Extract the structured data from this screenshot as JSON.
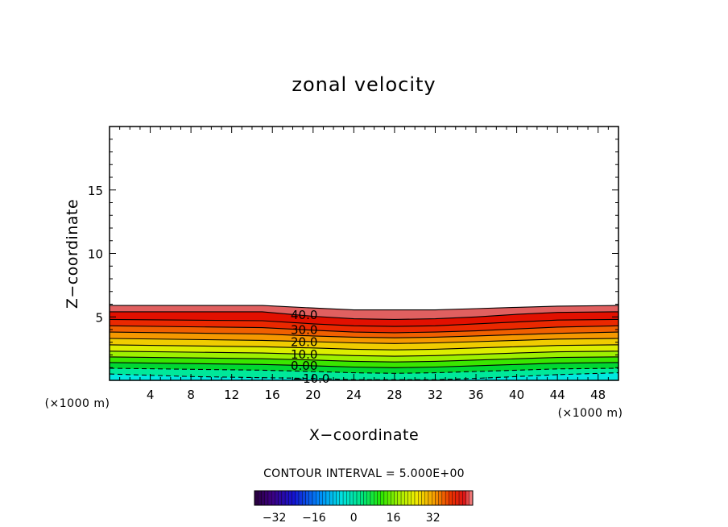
{
  "chart_data": {
    "type": "filled-contour",
    "title": "zonal velocity",
    "xlabel": "X−coordinate",
    "ylabel": "Z−coordinate",
    "x_unit_label": "(×1000 m)",
    "y_unit_label": "(×1000 m)",
    "xlim": [
      0,
      50
    ],
    "ylim": [
      0,
      20
    ],
    "x_ticks": [
      4,
      8,
      12,
      16,
      20,
      24,
      28,
      32,
      36,
      40,
      44,
      48
    ],
    "x_tick_labels": [
      "4",
      "8",
      "12",
      "16",
      "20",
      "24",
      "28",
      "32",
      "36",
      "40",
      "44",
      "48"
    ],
    "y_ticks": [
      5,
      10,
      15
    ],
    "y_tick_labels": [
      "5",
      "10",
      "15"
    ],
    "contour_interval_text": "CONTOUR INTERVAL = 5.000E+00",
    "contour_interval": 5,
    "top_of_field_height": 6.0,
    "contour_labels": [
      {
        "text": "40.0",
        "value": 40,
        "x": 17.8
      },
      {
        "text": "30.0",
        "value": 30,
        "x": 17.8
      },
      {
        "text": "20.0",
        "value": 20,
        "x": 17.8
      },
      {
        "text": "10.0",
        "value": 10,
        "x": 17.8
      },
      {
        "text": "0.00",
        "value": 0,
        "x": 17.8
      },
      {
        "text": "−10.0",
        "value": -10,
        "x": 18.0
      }
    ],
    "contour_profiles": [
      {
        "value": 45,
        "x": [
          0,
          15,
          20,
          24,
          28,
          32,
          36,
          40,
          44,
          50
        ],
        "z": [
          5.9,
          5.9,
          5.7,
          5.55,
          5.55,
          5.55,
          5.65,
          5.75,
          5.85,
          5.9
        ]
      },
      {
        "value": 40,
        "x": [
          0,
          15,
          20,
          24,
          28,
          32,
          36,
          40,
          44,
          50
        ],
        "z": [
          5.4,
          5.4,
          5.05,
          4.85,
          4.8,
          4.85,
          5.0,
          5.2,
          5.35,
          5.4
        ]
      },
      {
        "value": 35,
        "x": [
          0,
          15,
          20,
          24,
          28,
          32,
          36,
          40,
          44,
          50
        ],
        "z": [
          4.8,
          4.7,
          4.45,
          4.3,
          4.25,
          4.3,
          4.45,
          4.6,
          4.75,
          4.8
        ]
      },
      {
        "value": 30,
        "x": [
          0,
          15,
          20,
          24,
          28,
          32,
          36,
          40,
          44,
          50
        ],
        "z": [
          4.3,
          4.15,
          3.95,
          3.8,
          3.75,
          3.8,
          3.9,
          4.05,
          4.2,
          4.3
        ]
      },
      {
        "value": 25,
        "x": [
          0,
          15,
          20,
          24,
          28,
          32,
          36,
          40,
          44,
          50
        ],
        "z": [
          3.8,
          3.65,
          3.5,
          3.4,
          3.35,
          3.4,
          3.5,
          3.6,
          3.7,
          3.8
        ]
      },
      {
        "value": 20,
        "x": [
          0,
          15,
          20,
          24,
          28,
          32,
          36,
          40,
          44,
          50
        ],
        "z": [
          3.3,
          3.15,
          3.05,
          2.95,
          2.9,
          2.95,
          3.05,
          3.15,
          3.25,
          3.3
        ]
      },
      {
        "value": 15,
        "x": [
          0,
          15,
          20,
          24,
          28,
          32,
          36,
          40,
          44,
          50
        ],
        "z": [
          2.8,
          2.65,
          2.55,
          2.45,
          2.4,
          2.45,
          2.55,
          2.65,
          2.75,
          2.8
        ]
      },
      {
        "value": 10,
        "x": [
          0,
          15,
          20,
          24,
          28,
          32,
          36,
          40,
          44,
          50
        ],
        "z": [
          2.3,
          2.15,
          2.05,
          1.95,
          1.9,
          1.95,
          2.05,
          2.15,
          2.25,
          2.3
        ]
      },
      {
        "value": 5,
        "x": [
          0,
          15,
          20,
          24,
          28,
          32,
          36,
          40,
          44,
          50
        ],
        "z": [
          1.85,
          1.7,
          1.6,
          1.5,
          1.45,
          1.5,
          1.6,
          1.7,
          1.8,
          1.85
        ]
      },
      {
        "value": 0,
        "x": [
          0,
          15,
          20,
          24,
          28,
          32,
          36,
          40,
          44,
          50
        ],
        "z": [
          1.4,
          1.25,
          1.15,
          1.05,
          1.0,
          1.05,
          1.15,
          1.25,
          1.35,
          1.4
        ]
      },
      {
        "value": -5,
        "x": [
          0,
          15,
          20,
          24,
          28,
          32,
          36,
          40,
          44,
          50
        ],
        "z": [
          0.95,
          0.8,
          0.7,
          0.6,
          0.55,
          0.6,
          0.7,
          0.8,
          0.9,
          0.95
        ]
      },
      {
        "value": -10,
        "x": [
          0,
          8,
          16,
          20,
          24,
          28,
          32,
          36,
          40,
          44,
          50
        ],
        "z": [
          0.5,
          0.3,
          0.2,
          0.15,
          0.05,
          0.05,
          0.05,
          0.15,
          0.3,
          0.45,
          0.6
        ]
      }
    ],
    "fill_colors": [
      "#00e8e0",
      "#00e89a",
      "#00d832",
      "#3ae600",
      "#9ef000",
      "#dcee00",
      "#f0cc00",
      "#f59800",
      "#f06000",
      "#ea2800",
      "#e21000",
      "#e06060"
    ],
    "colorbar": {
      "vmin": -40,
      "vmax": 48,
      "tick_values": [
        -32,
        -16,
        0,
        16,
        32
      ],
      "tick_labels": [
        "−32",
        "−16",
        "0",
        "16",
        "32"
      ]
    }
  }
}
